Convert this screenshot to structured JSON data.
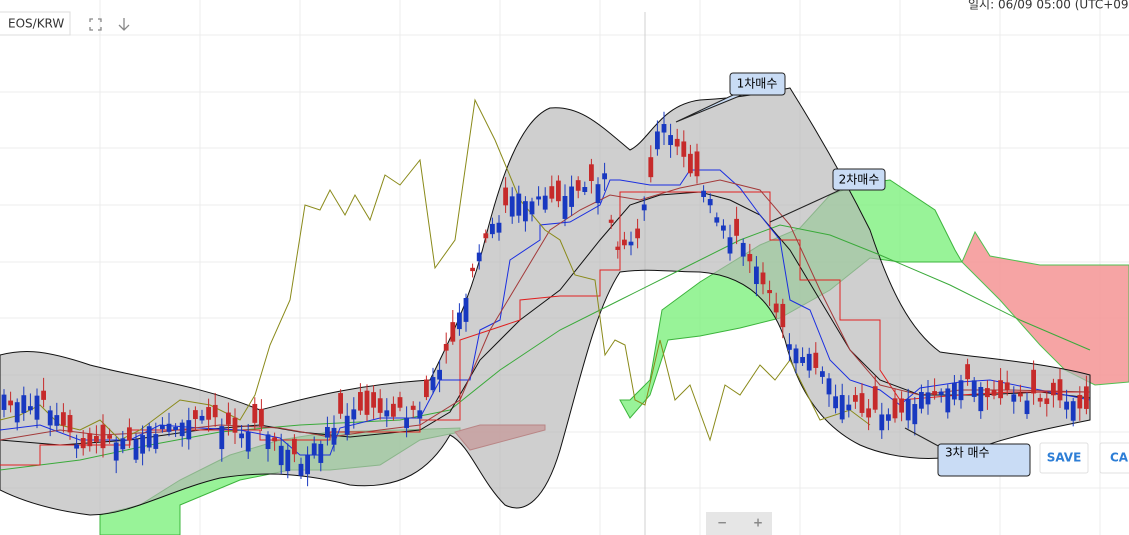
{
  "toolbar": {
    "symbol": "EOS/KRW"
  },
  "header": {
    "datetime": "일시: 06/09 05:00 (UTC+09:00"
  },
  "annotations": [
    "1차매수",
    "2차매수",
    "3차 매수"
  ],
  "buttons": {
    "save": "SAVE",
    "cancel": "CAN"
  },
  "zoom": {
    "out": "−",
    "in": "+"
  }
}
